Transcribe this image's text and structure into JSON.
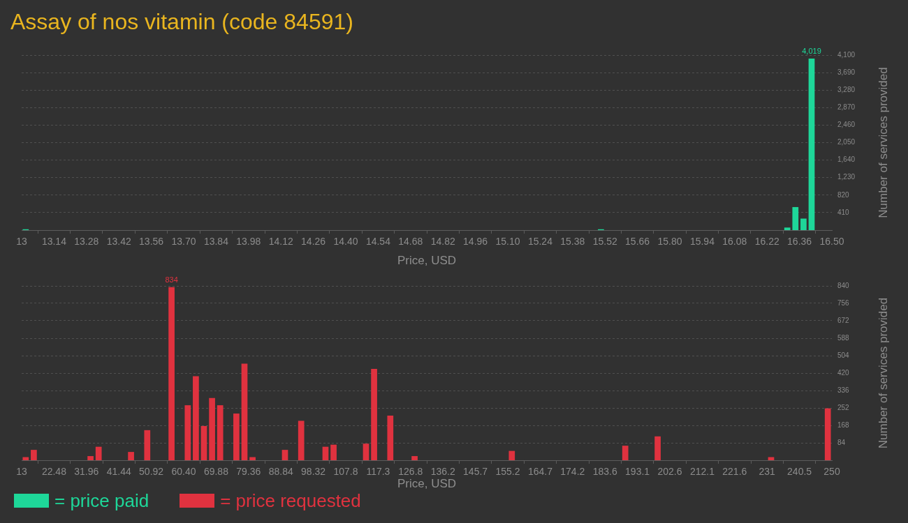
{
  "chart_data": [
    {
      "type": "histogram",
      "title": "Assay of nos vitamin (code 84591)",
      "xlabel": "Price, USD",
      "ylabel": "Number of services provided",
      "bins": [
        13,
        13.035,
        13.07,
        13.105,
        13.14,
        13.175,
        13.21,
        13.245,
        13.28,
        13.315,
        13.35,
        13.385,
        13.42,
        13.455,
        13.49,
        13.525,
        13.56,
        13.595,
        13.63,
        13.665,
        13.7,
        13.735,
        13.77,
        13.805,
        13.84,
        13.875,
        13.91,
        13.945,
        13.98,
        14.015,
        14.05,
        14.085,
        14.12,
        14.155,
        14.19,
        14.225,
        14.26,
        14.295,
        14.33,
        14.365,
        14.4,
        14.435,
        14.47,
        14.505,
        14.54,
        14.575,
        14.61,
        14.645,
        14.68,
        14.715,
        14.75,
        14.785,
        14.82,
        14.855,
        14.89,
        14.925,
        14.96,
        14.995,
        15.03,
        15.065,
        15.1,
        15.135,
        15.17,
        15.205,
        15.24,
        15.275,
        15.31,
        15.345,
        15.38,
        15.415,
        15.45,
        15.485,
        15.52,
        15.555,
        15.59,
        15.625,
        15.66,
        15.695,
        15.73,
        15.765,
        15.8,
        15.835,
        15.87,
        15.905,
        15.94,
        15.975,
        16.01,
        16.045,
        16.08,
        16.115,
        16.15,
        16.185,
        16.22,
        16.255,
        16.29,
        16.325,
        16.36,
        16.395,
        16.43,
        16.465,
        16.5
      ],
      "series": [
        {
          "name": "= price paid",
          "color": "#1ed799",
          "values": [
            20,
            0,
            0,
            0,
            0,
            0,
            0,
            0,
            0,
            0,
            0,
            0,
            0,
            0,
            0,
            0,
            0,
            0,
            0,
            0,
            0,
            0,
            0,
            0,
            0,
            0,
            0,
            0,
            0,
            0,
            0,
            0,
            0,
            0,
            0,
            0,
            0,
            0,
            0,
            0,
            0,
            0,
            0,
            0,
            0,
            0,
            0,
            0,
            0,
            0,
            0,
            0,
            0,
            0,
            0,
            0,
            0,
            0,
            0,
            0,
            0,
            0,
            0,
            0,
            0,
            0,
            0,
            0,
            0,
            0,
            0,
            20,
            0,
            0,
            0,
            0,
            0,
            0,
            0,
            0,
            0,
            0,
            0,
            0,
            0,
            0,
            0,
            0,
            0,
            0,
            0,
            0,
            0,
            0,
            60,
            540,
            270,
            4019,
            0,
            0
          ],
          "value_labels": [
            null,
            null,
            null,
            null,
            null,
            null,
            null,
            null,
            null,
            null,
            null,
            null,
            null,
            null,
            null,
            null,
            null,
            null,
            null,
            null,
            null,
            null,
            null,
            null,
            null,
            null,
            null,
            null,
            null,
            null,
            null,
            null,
            null,
            null,
            null,
            null,
            null,
            null,
            null,
            null,
            null,
            null,
            null,
            null,
            null,
            null,
            null,
            null,
            null,
            null,
            null,
            null,
            null,
            null,
            null,
            null,
            null,
            null,
            null,
            null,
            null,
            null,
            null,
            null,
            null,
            null,
            null,
            null,
            null,
            null,
            null,
            null,
            null,
            null,
            null,
            null,
            null,
            null,
            null,
            null,
            null,
            null,
            null,
            null,
            null,
            null,
            null,
            null,
            null,
            null,
            null,
            null,
            null,
            null,
            null,
            null,
            null,
            "4,019",
            null,
            null
          ]
        }
      ],
      "xlim": [
        13,
        16.5
      ],
      "xticks": [
        13,
        13.14,
        13.28,
        13.42,
        13.56,
        {
          "value": 13.7,
          "label": "13.70"
        },
        13.84,
        13.98,
        14.12,
        14.26,
        {
          "value": 14.4,
          "label": "14.40"
        },
        14.54,
        14.68,
        14.82,
        14.96,
        {
          "value": 15.1,
          "label": "15.10"
        },
        15.24,
        15.38,
        15.52,
        15.66,
        {
          "value": 15.8,
          "label": "15.80"
        },
        15.94,
        16.08,
        16.22,
        16.36,
        {
          "value": 16.5,
          "label": "16.50"
        }
      ],
      "ylim": [
        0,
        4100
      ],
      "yticks": [
        410,
        820,
        {
          "value": 1230,
          "label": "1,230"
        },
        {
          "value": 1640,
          "label": "1,640"
        },
        {
          "value": 2050,
          "label": "2,050"
        },
        {
          "value": 2460,
          "label": "2,460"
        },
        {
          "value": 2870,
          "label": "2,870"
        },
        {
          "value": 3280,
          "label": "3,280"
        },
        {
          "value": 3690,
          "label": "3,690"
        },
        {
          "value": 4100,
          "label": "4,100"
        }
      ],
      "grid": "y",
      "legend": "bottom"
    },
    {
      "type": "histogram",
      "xlabel": "Price, USD",
      "ylabel": "Number of services provided",
      "bins": [
        13,
        15.37,
        17.74,
        20.11,
        22.48,
        24.85,
        27.22,
        29.59,
        31.96,
        34.33,
        36.7,
        39.07,
        41.44,
        43.81,
        46.18,
        48.55,
        50.92,
        53.29,
        55.66,
        58.03,
        60.4,
        62.77,
        65.14,
        67.51,
        69.88,
        72.25,
        74.62,
        76.99,
        79.36,
        81.73,
        84.1,
        86.47,
        88.84,
        91.21,
        93.58,
        95.95,
        98.32,
        100.69,
        103.06,
        105.43,
        107.8,
        110.17,
        112.54,
        114.91,
        117.28,
        119.65,
        122.02,
        124.39,
        126.76,
        129.13,
        131.5,
        133.87,
        136.24,
        138.61,
        140.98,
        143.35,
        145.72,
        148.09,
        150.46,
        152.83,
        155.2,
        157.57,
        159.94,
        162.31,
        164.68,
        167.05,
        169.42,
        171.79,
        174.16,
        176.53,
        178.9,
        181.27,
        183.64,
        186.01,
        188.38,
        190.75,
        193.12,
        195.49,
        197.86,
        200.23,
        202.6,
        204.97,
        207.34,
        209.71,
        212.08,
        214.45,
        216.82,
        219.19,
        221.56,
        223.93,
        226.3,
        228.67,
        231.04,
        233.41,
        235.78,
        238.15,
        240.52,
        242.89,
        245.26,
        247.63,
        250
      ],
      "series": [
        {
          "name": "= price requested",
          "color": "#e0323f",
          "values": [
            15,
            50,
            0,
            0,
            0,
            0,
            0,
            0,
            20,
            65,
            0,
            0,
            0,
            40,
            0,
            145,
            0,
            0,
            834,
            0,
            265,
            405,
            165,
            300,
            265,
            0,
            225,
            465,
            15,
            0,
            0,
            0,
            50,
            0,
            190,
            0,
            0,
            65,
            75,
            0,
            0,
            0,
            80,
            440,
            0,
            215,
            0,
            0,
            20,
            0,
            0,
            0,
            0,
            0,
            0,
            0,
            0,
            0,
            0,
            0,
            45,
            0,
            0,
            0,
            0,
            0,
            0,
            0,
            0,
            0,
            0,
            0,
            0,
            0,
            70,
            0,
            0,
            0,
            115,
            0,
            0,
            0,
            0,
            0,
            0,
            0,
            0,
            0,
            0,
            0,
            0,
            0,
            15,
            0,
            0,
            0,
            0,
            0,
            0,
            250
          ],
          "value_labels": [
            null,
            null,
            null,
            null,
            null,
            null,
            null,
            null,
            null,
            null,
            null,
            null,
            null,
            null,
            null,
            null,
            null,
            null,
            "834",
            null,
            null,
            null,
            null,
            null,
            null,
            null,
            null,
            null,
            null,
            null,
            null,
            null,
            null,
            null,
            null,
            null,
            null,
            null,
            null,
            null,
            null,
            null,
            null,
            null,
            null,
            null,
            null,
            null,
            null,
            null,
            null,
            null,
            null,
            null,
            null,
            null,
            null,
            null,
            null,
            null,
            null,
            null,
            null,
            null,
            null,
            null,
            null,
            null,
            null,
            null,
            null,
            null,
            null,
            null,
            null,
            null,
            null,
            null,
            null,
            null,
            null,
            null,
            null,
            null,
            null,
            null,
            null,
            null,
            null,
            null,
            null,
            null,
            null,
            null,
            null,
            null,
            null,
            null,
            null,
            null
          ]
        }
      ],
      "xlim": [
        13,
        250
      ],
      "xticks": [
        13,
        22.48,
        31.96,
        41.44,
        50.92,
        {
          "value": 60.4,
          "label": "60.40"
        },
        69.88,
        79.36,
        88.84,
        98.32,
        107.8,
        {
          "value": 117.28,
          "label": "117.3"
        },
        {
          "value": 126.76,
          "label": "126.8"
        },
        {
          "value": 136.24,
          "label": "136.2"
        },
        {
          "value": 145.72,
          "label": "145.7"
        },
        155.2,
        {
          "value": 164.68,
          "label": "164.7"
        },
        {
          "value": 174.16,
          "label": "174.2"
        },
        {
          "value": 183.64,
          "label": "183.6"
        },
        {
          "value": 193.12,
          "label": "193.1"
        },
        202.6,
        {
          "value": 212.08,
          "label": "212.1"
        },
        {
          "value": 221.56,
          "label": "221.6"
        },
        {
          "value": 231.04,
          "label": "231"
        },
        {
          "value": 240.52,
          "label": "240.5"
        },
        250
      ],
      "ylim": [
        0,
        840
      ],
      "yticks": [
        84,
        168,
        252,
        336,
        420,
        504,
        588,
        672,
        756,
        840
      ],
      "grid": "y",
      "legend": "bottom"
    }
  ]
}
